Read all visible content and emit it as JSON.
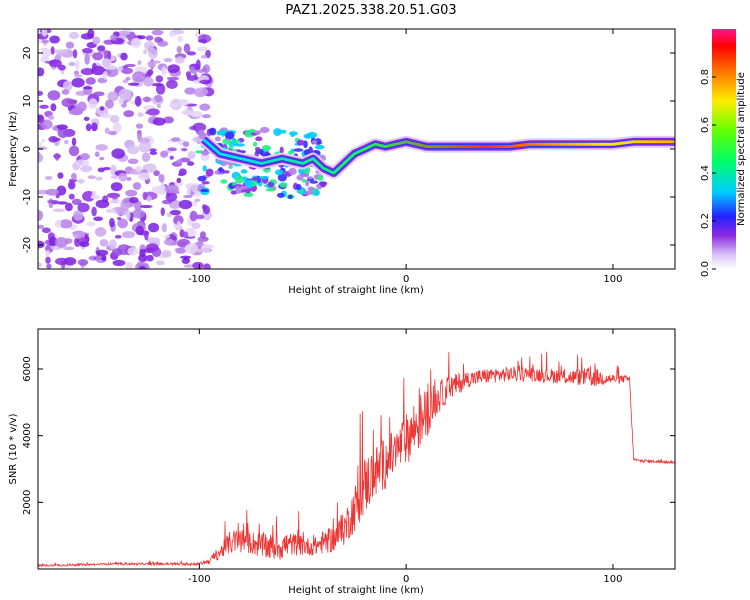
{
  "title": "PAZ1.2025.338.20.51.G03",
  "chart_data": [
    {
      "type": "heatmap",
      "name": "spectrogram",
      "xlabel": "Height of straight line (km)",
      "ylabel": "Frequency (Hz)",
      "xlim": [
        -178,
        130
      ],
      "ylim": [
        -25,
        25
      ],
      "x_ticks": [
        -100,
        0,
        100
      ],
      "x_tick_labels": [
        "-100",
        "0",
        "100"
      ],
      "y_ticks": [
        -20,
        -10,
        0,
        10,
        20
      ],
      "y_tick_labels": [
        "-20",
        "-10",
        "0",
        "10",
        "20"
      ],
      "colorbar": {
        "label": "Normalized spectral amplitude",
        "range": [
          0,
          1
        ],
        "ticks": [
          0.0,
          0.2,
          0.4,
          0.6,
          0.8
        ],
        "tick_labels": [
          "0.0",
          "0.2",
          "0.4",
          "0.6",
          "0.8"
        ]
      },
      "ridge": {
        "x": [
          -98,
          -90,
          -80,
          -70,
          -60,
          -50,
          -45,
          -40,
          -35,
          -30,
          -25,
          -20,
          -15,
          -10,
          -5,
          0,
          10,
          20,
          30,
          40,
          50,
          60,
          70,
          80,
          90,
          100,
          110,
          120,
          130
        ],
        "freq": [
          2,
          -1,
          -2,
          -3,
          -2,
          -3,
          -2,
          -4,
          -5,
          -3,
          -1,
          0,
          1,
          0.5,
          1,
          1.5,
          0.5,
          0.5,
          0.5,
          0.5,
          0.5,
          1,
          1,
          1,
          1,
          1,
          1.5,
          1.5,
          1.5
        ]
      },
      "noise_region": {
        "x_range": [
          -178,
          -95
        ],
        "freq_range": [
          -25,
          25
        ]
      }
    },
    {
      "type": "line",
      "name": "snr",
      "xlabel": "Height of straight line (km)",
      "ylabel": "SNR (10 * v/v)",
      "xlim": [
        -178,
        130
      ],
      "ylim": [
        0,
        7200
      ],
      "x_ticks": [
        -100,
        0,
        100
      ],
      "x_tick_labels": [
        "-100",
        "0",
        "100"
      ],
      "y_ticks": [
        2000,
        4000,
        6000
      ],
      "y_tick_labels": [
        "2000",
        "4000",
        "6000"
      ],
      "color": "#ee3333",
      "envelope": {
        "x": [
          -178,
          -140,
          -100,
          -95,
          -90,
          -85,
          -80,
          -75,
          -70,
          -65,
          -60,
          -55,
          -50,
          -45,
          -40,
          -35,
          -30,
          -25,
          -20,
          -15,
          -10,
          -5,
          0,
          5,
          10,
          15,
          20,
          30,
          40,
          50,
          60,
          70,
          80,
          90,
          100,
          108,
          110,
          112,
          130
        ],
        "base": [
          100,
          150,
          150,
          250,
          500,
          800,
          850,
          800,
          700,
          650,
          700,
          750,
          700,
          650,
          800,
          900,
          1200,
          1800,
          2500,
          2900,
          3200,
          3500,
          3900,
          4300,
          4700,
          5100,
          5400,
          5700,
          5800,
          5850,
          5850,
          5800,
          5750,
          5750,
          5700,
          5700,
          3300,
          3250,
          3200
        ],
        "spread": [
          60,
          60,
          80,
          200,
          400,
          700,
          800,
          700,
          800,
          800,
          900,
          700,
          600,
          500,
          700,
          800,
          1000,
          1400,
          1800,
          1600,
          1600,
          1400,
          1500,
          1800,
          1500,
          1000,
          800,
          500,
          450,
          450,
          450,
          450,
          450,
          600,
          300,
          200,
          100,
          100,
          80
        ]
      }
    }
  ]
}
